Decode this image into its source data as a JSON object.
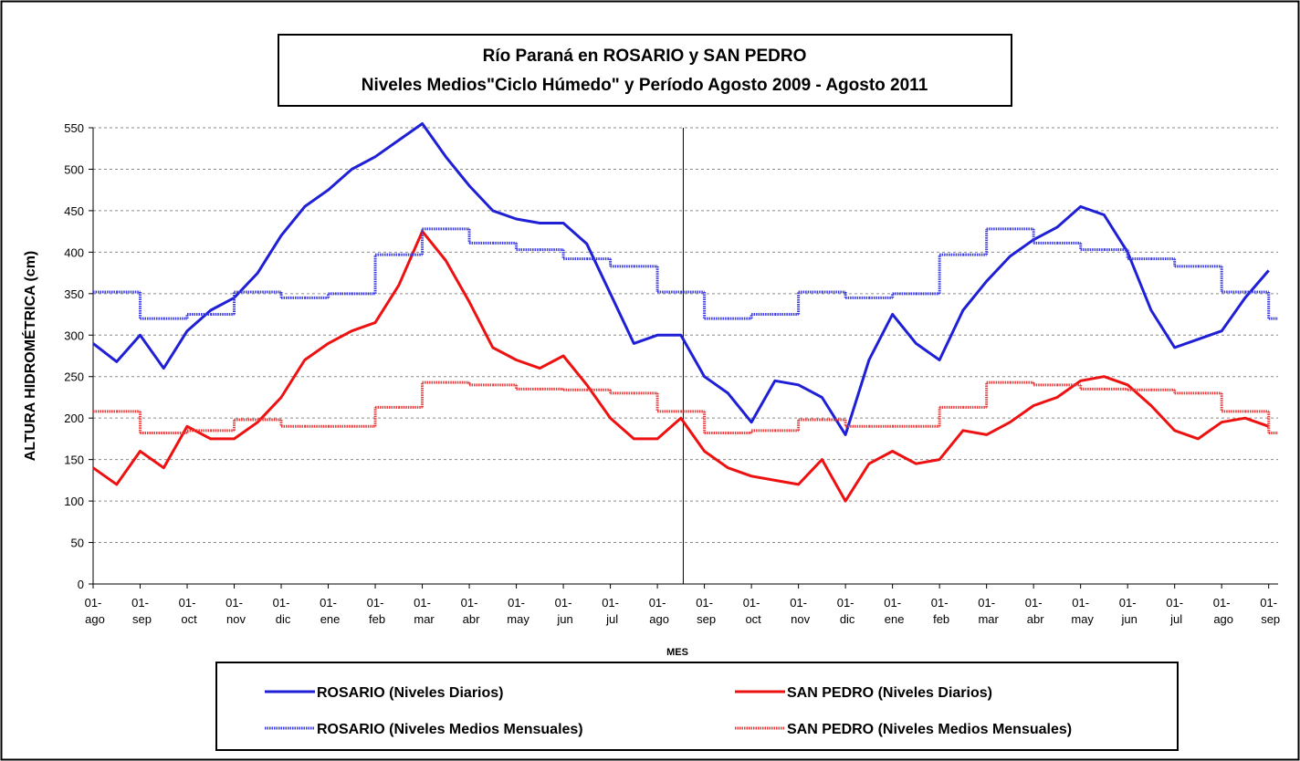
{
  "chart_data": {
    "type": "line",
    "title": [
      "Río Paraná en ROSARIO y SAN PEDRO",
      "Niveles Medios\"Ciclo Húmedo\" y Período Agosto 2009 - Agosto 2011"
    ],
    "y_label": "ALTURA HIDROMÉTRICA (cm)",
    "x_label": "MES",
    "categories": [
      [
        "01-",
        "ago"
      ],
      [
        "01-",
        "sep"
      ],
      [
        "01-",
        "oct"
      ],
      [
        "01-",
        "nov"
      ],
      [
        "01-",
        "dic"
      ],
      [
        "01-",
        "ene"
      ],
      [
        "01-",
        "feb"
      ],
      [
        "01-",
        "mar"
      ],
      [
        "01-",
        "abr"
      ],
      [
        "01-",
        "may"
      ],
      [
        "01-",
        "jun"
      ],
      [
        "01-",
        "jul"
      ],
      [
        "01-",
        "ago"
      ],
      [
        "01-",
        "sep"
      ],
      [
        "01-",
        "oct"
      ],
      [
        "01-",
        "nov"
      ],
      [
        "01-",
        "dic"
      ],
      [
        "01-",
        "ene"
      ],
      [
        "01-",
        "feb"
      ],
      [
        "01-",
        "mar"
      ],
      [
        "01-",
        "abr"
      ],
      [
        "01-",
        "may"
      ],
      [
        "01-",
        "jun"
      ],
      [
        "01-",
        "jul"
      ],
      [
        "01-",
        "ago"
      ],
      [
        "01-",
        "sep"
      ]
    ],
    "x": [
      0,
      0.5,
      1,
      1.5,
      2,
      2.5,
      3,
      3.5,
      4,
      4.5,
      5,
      5.5,
      6,
      6.5,
      7,
      7.5,
      8,
      8.5,
      9,
      9.5,
      10,
      10.5,
      11,
      11.5,
      12,
      12.5,
      13,
      13.5,
      14,
      14.5,
      15,
      15.5,
      16,
      16.5,
      17,
      17.5,
      18,
      18.5,
      19,
      19.5,
      20,
      20.5,
      21,
      21.5,
      22,
      22.5,
      23,
      23.5,
      24,
      24.5,
      25
    ],
    "xlim": [
      0,
      25.2
    ],
    "ylim": [
      0,
      550
    ],
    "yticks": [
      0,
      50,
      100,
      150,
      200,
      250,
      300,
      350,
      400,
      450,
      500,
      550
    ],
    "grid": true,
    "vline": 12.55,
    "series": [
      {
        "name": "ROSARIO (Niveles Diarios)",
        "color": "#1f1fd6",
        "style": "solid",
        "values": [
          290,
          268,
          300,
          260,
          305,
          330,
          345,
          375,
          420,
          455,
          475,
          500,
          515,
          535,
          555,
          515,
          480,
          450,
          440,
          435,
          435,
          410,
          350,
          290,
          300,
          300,
          250,
          230,
          195,
          245,
          240,
          225,
          180,
          270,
          325,
          290,
          270,
          330,
          365,
          395,
          415,
          430,
          455,
          445,
          400,
          330,
          285,
          295,
          305,
          345,
          378
        ]
      },
      {
        "name": "SAN PEDRO (Niveles Diarios)",
        "color": "#ee1111",
        "style": "solid",
        "values": [
          140,
          120,
          160,
          140,
          190,
          175,
          175,
          195,
          225,
          270,
          290,
          305,
          315,
          360,
          425,
          390,
          340,
          285,
          270,
          260,
          275,
          240,
          200,
          175,
          175,
          200,
          160,
          140,
          130,
          125,
          120,
          150,
          100,
          145,
          160,
          145,
          150,
          185,
          180,
          195,
          215,
          225,
          245,
          250,
          240,
          215,
          185,
          175,
          195,
          200,
          190
        ]
      },
      {
        "name": "ROSARIO (Niveles Medios Mensuales)",
        "color": "#3a3ae0",
        "style": "step",
        "values": [
          352,
          352,
          320,
          320,
          325,
          325,
          352,
          352,
          345,
          345,
          350,
          350,
          397,
          397,
          428,
          428,
          411,
          411,
          403,
          403,
          392,
          392,
          383,
          383,
          352,
          352,
          320,
          320,
          325,
          325,
          352,
          352,
          345,
          345,
          350,
          350,
          397,
          397,
          428,
          428,
          411,
          411,
          403,
          403,
          392,
          392,
          383,
          383,
          352,
          352,
          320
        ]
      },
      {
        "name": "SAN PEDRO (Niveles Medios Mensuales)",
        "color": "#e83a3a",
        "style": "step",
        "values": [
          208,
          208,
          182,
          182,
          185,
          185,
          198,
          198,
          190,
          190,
          190,
          190,
          213,
          213,
          243,
          243,
          240,
          240,
          235,
          235,
          234,
          234,
          230,
          230,
          208,
          208,
          182,
          182,
          185,
          185,
          198,
          198,
          190,
          190,
          190,
          190,
          213,
          213,
          243,
          243,
          240,
          240,
          235,
          235,
          234,
          234,
          230,
          230,
          208,
          208,
          182
        ]
      }
    ]
  }
}
